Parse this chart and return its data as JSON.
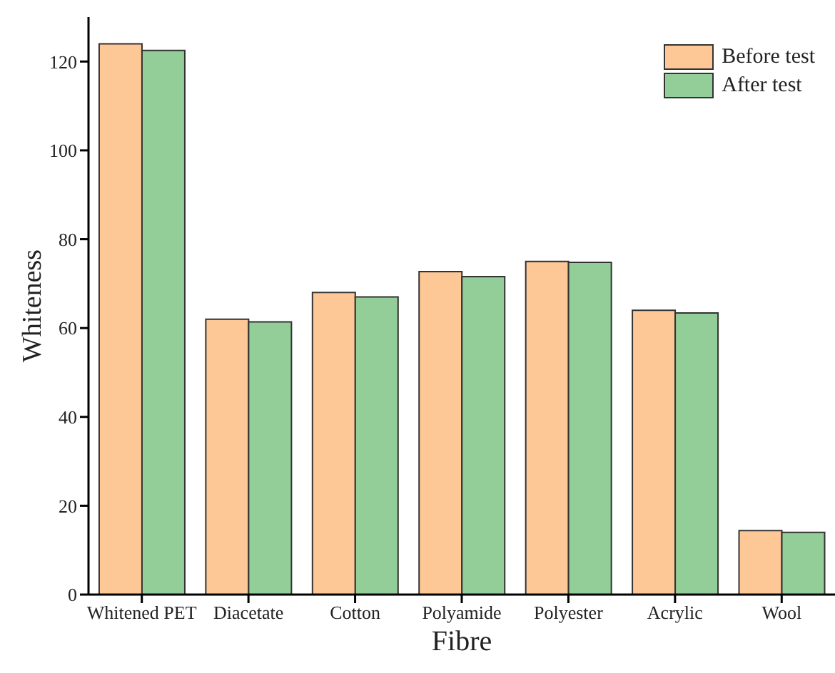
{
  "chart_data": {
    "type": "bar",
    "xlabel": "Fibre",
    "ylabel": "Whiteness",
    "categories": [
      "Whitened PET",
      "Diacetate",
      "Cotton",
      "Polyamide",
      "Polyester",
      "Acrylic",
      "Wool"
    ],
    "series": [
      {
        "name": "Before test",
        "color": "#fec796",
        "values": [
          124,
          62,
          68,
          72.7,
          75,
          64,
          14.4
        ]
      },
      {
        "name": "After test",
        "color": "#93cd98",
        "values": [
          122.5,
          61.4,
          67,
          71.6,
          74.8,
          63.4,
          14
        ]
      }
    ],
    "ylim": [
      0,
      130
    ],
    "yticks": [
      0,
      20,
      40,
      60,
      80,
      100,
      120
    ],
    "grid": false,
    "legend": "top right"
  }
}
